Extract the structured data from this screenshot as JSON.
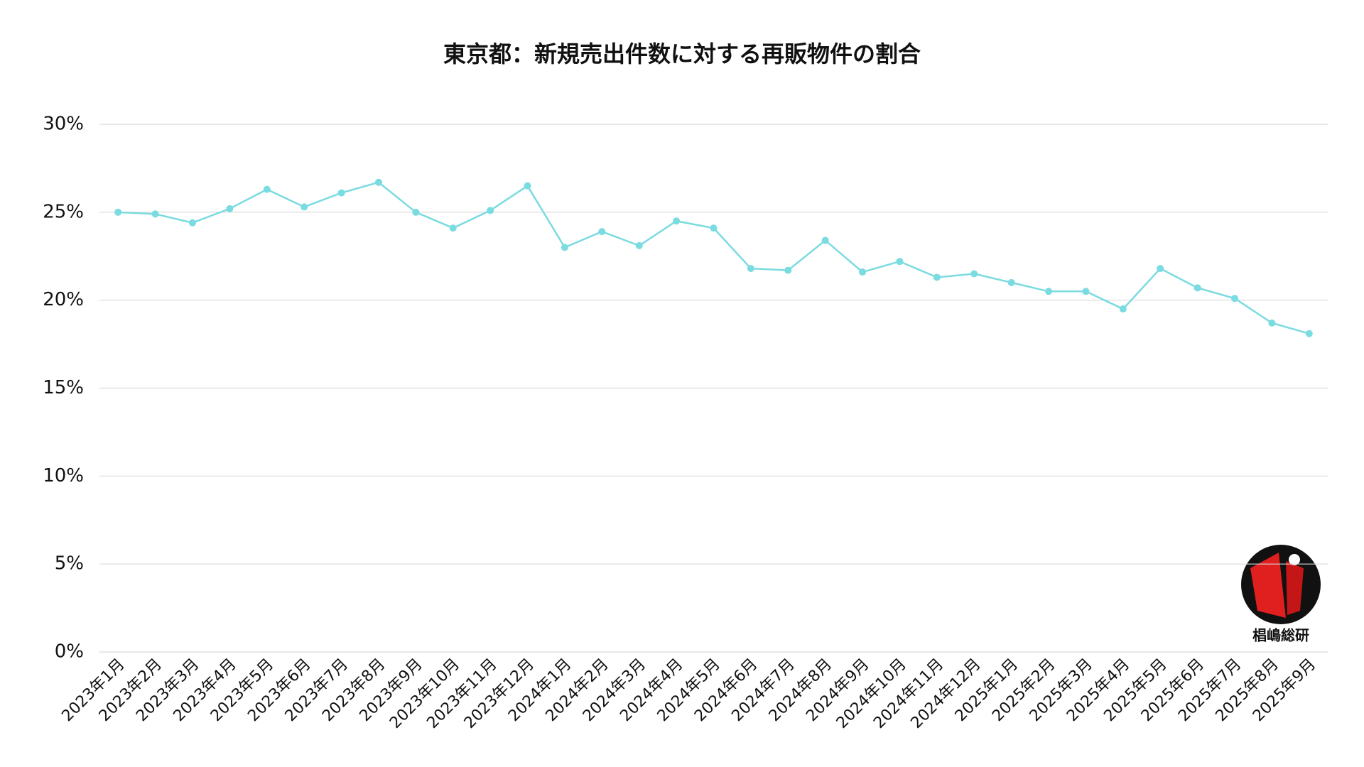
{
  "chart_data": {
    "type": "line",
    "title": "東京都：新規売出件数に対する再販物件の割合",
    "categories": [
      "2023年1月",
      "2023年2月",
      "2023年3月",
      "2023年4月",
      "2023年5月",
      "2023年6月",
      "2023年7月",
      "2023年8月",
      "2023年9月",
      "2023年10月",
      "2023年11月",
      "2023年12月",
      "2024年1月",
      "2024年2月",
      "2024年3月",
      "2024年4月",
      "2024年5月",
      "2024年6月",
      "2024年7月",
      "2024年8月",
      "2024年9月",
      "2024年10月",
      "2024年11月",
      "2024年12月",
      "2025年1月",
      "2025年2月",
      "2025年3月",
      "2025年4月",
      "2025年5月",
      "2025年6月",
      "2025年7月",
      "2025年8月",
      "2025年9月"
    ],
    "values": [
      25.0,
      24.9,
      24.4,
      25.2,
      26.3,
      25.3,
      26.1,
      26.7,
      25.0,
      24.1,
      25.1,
      26.5,
      23.0,
      23.9,
      23.1,
      24.5,
      24.1,
      21.8,
      21.7,
      23.4,
      21.6,
      22.2,
      21.3,
      21.5,
      21.0,
      20.5,
      20.5,
      19.5,
      21.8,
      20.7,
      20.1,
      18.7,
      18.1
    ],
    "color": "#7adbe0",
    "ylim": [
      0,
      30
    ],
    "yticks": [
      {
        "value": 0,
        "label": "0%"
      },
      {
        "value": 5,
        "label": "5%"
      },
      {
        "value": 10,
        "label": "10%"
      },
      {
        "value": 15,
        "label": "15%"
      },
      {
        "value": 20,
        "label": "20%"
      },
      {
        "value": 25,
        "label": "25%"
      },
      {
        "value": 30,
        "label": "30%"
      }
    ],
    "grid": true
  },
  "logo": {
    "text": "椙嶋総研"
  }
}
